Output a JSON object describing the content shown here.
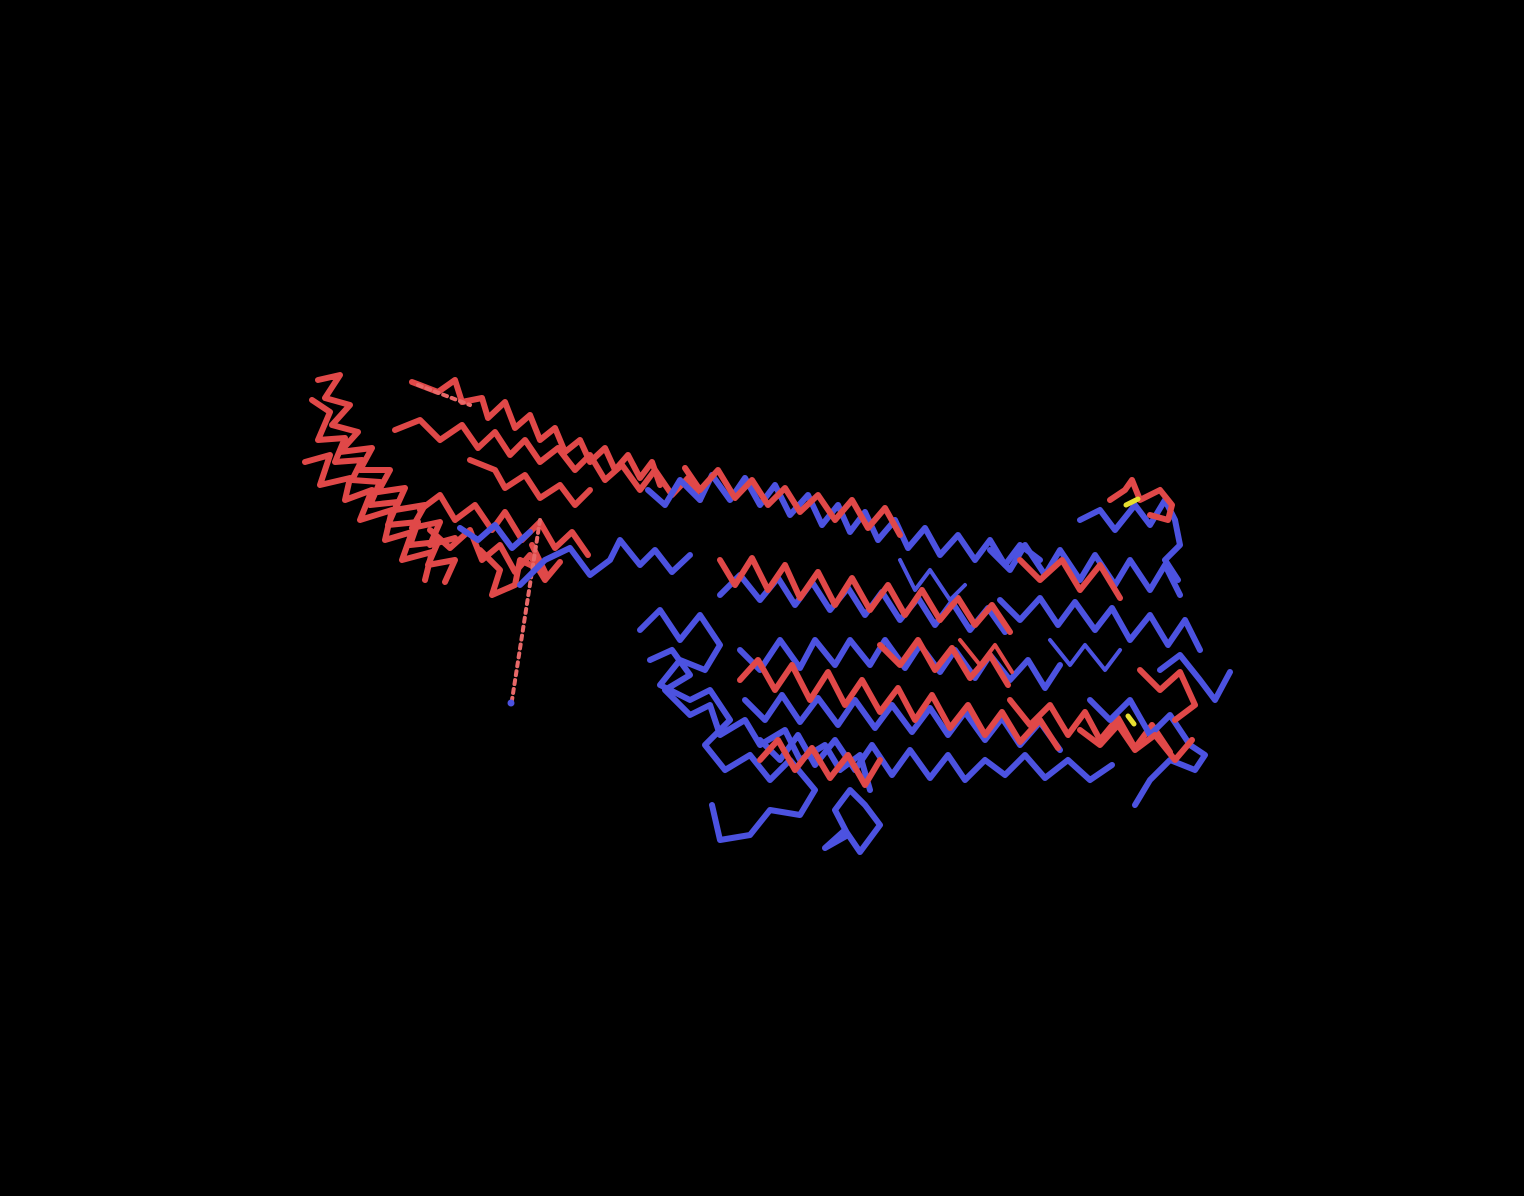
{
  "scene": {
    "background_color": "#000000",
    "representation": "backbone-trace",
    "chains": [
      {
        "name": "chain-red",
        "color": "#e04848"
      },
      {
        "name": "chain-blue",
        "color": "#4c52e0"
      }
    ],
    "accent_colors": {
      "sulfur": "#e8e030",
      "dashed_link": "#e86868",
      "terminal_atom": "#4c52e0"
    }
  }
}
